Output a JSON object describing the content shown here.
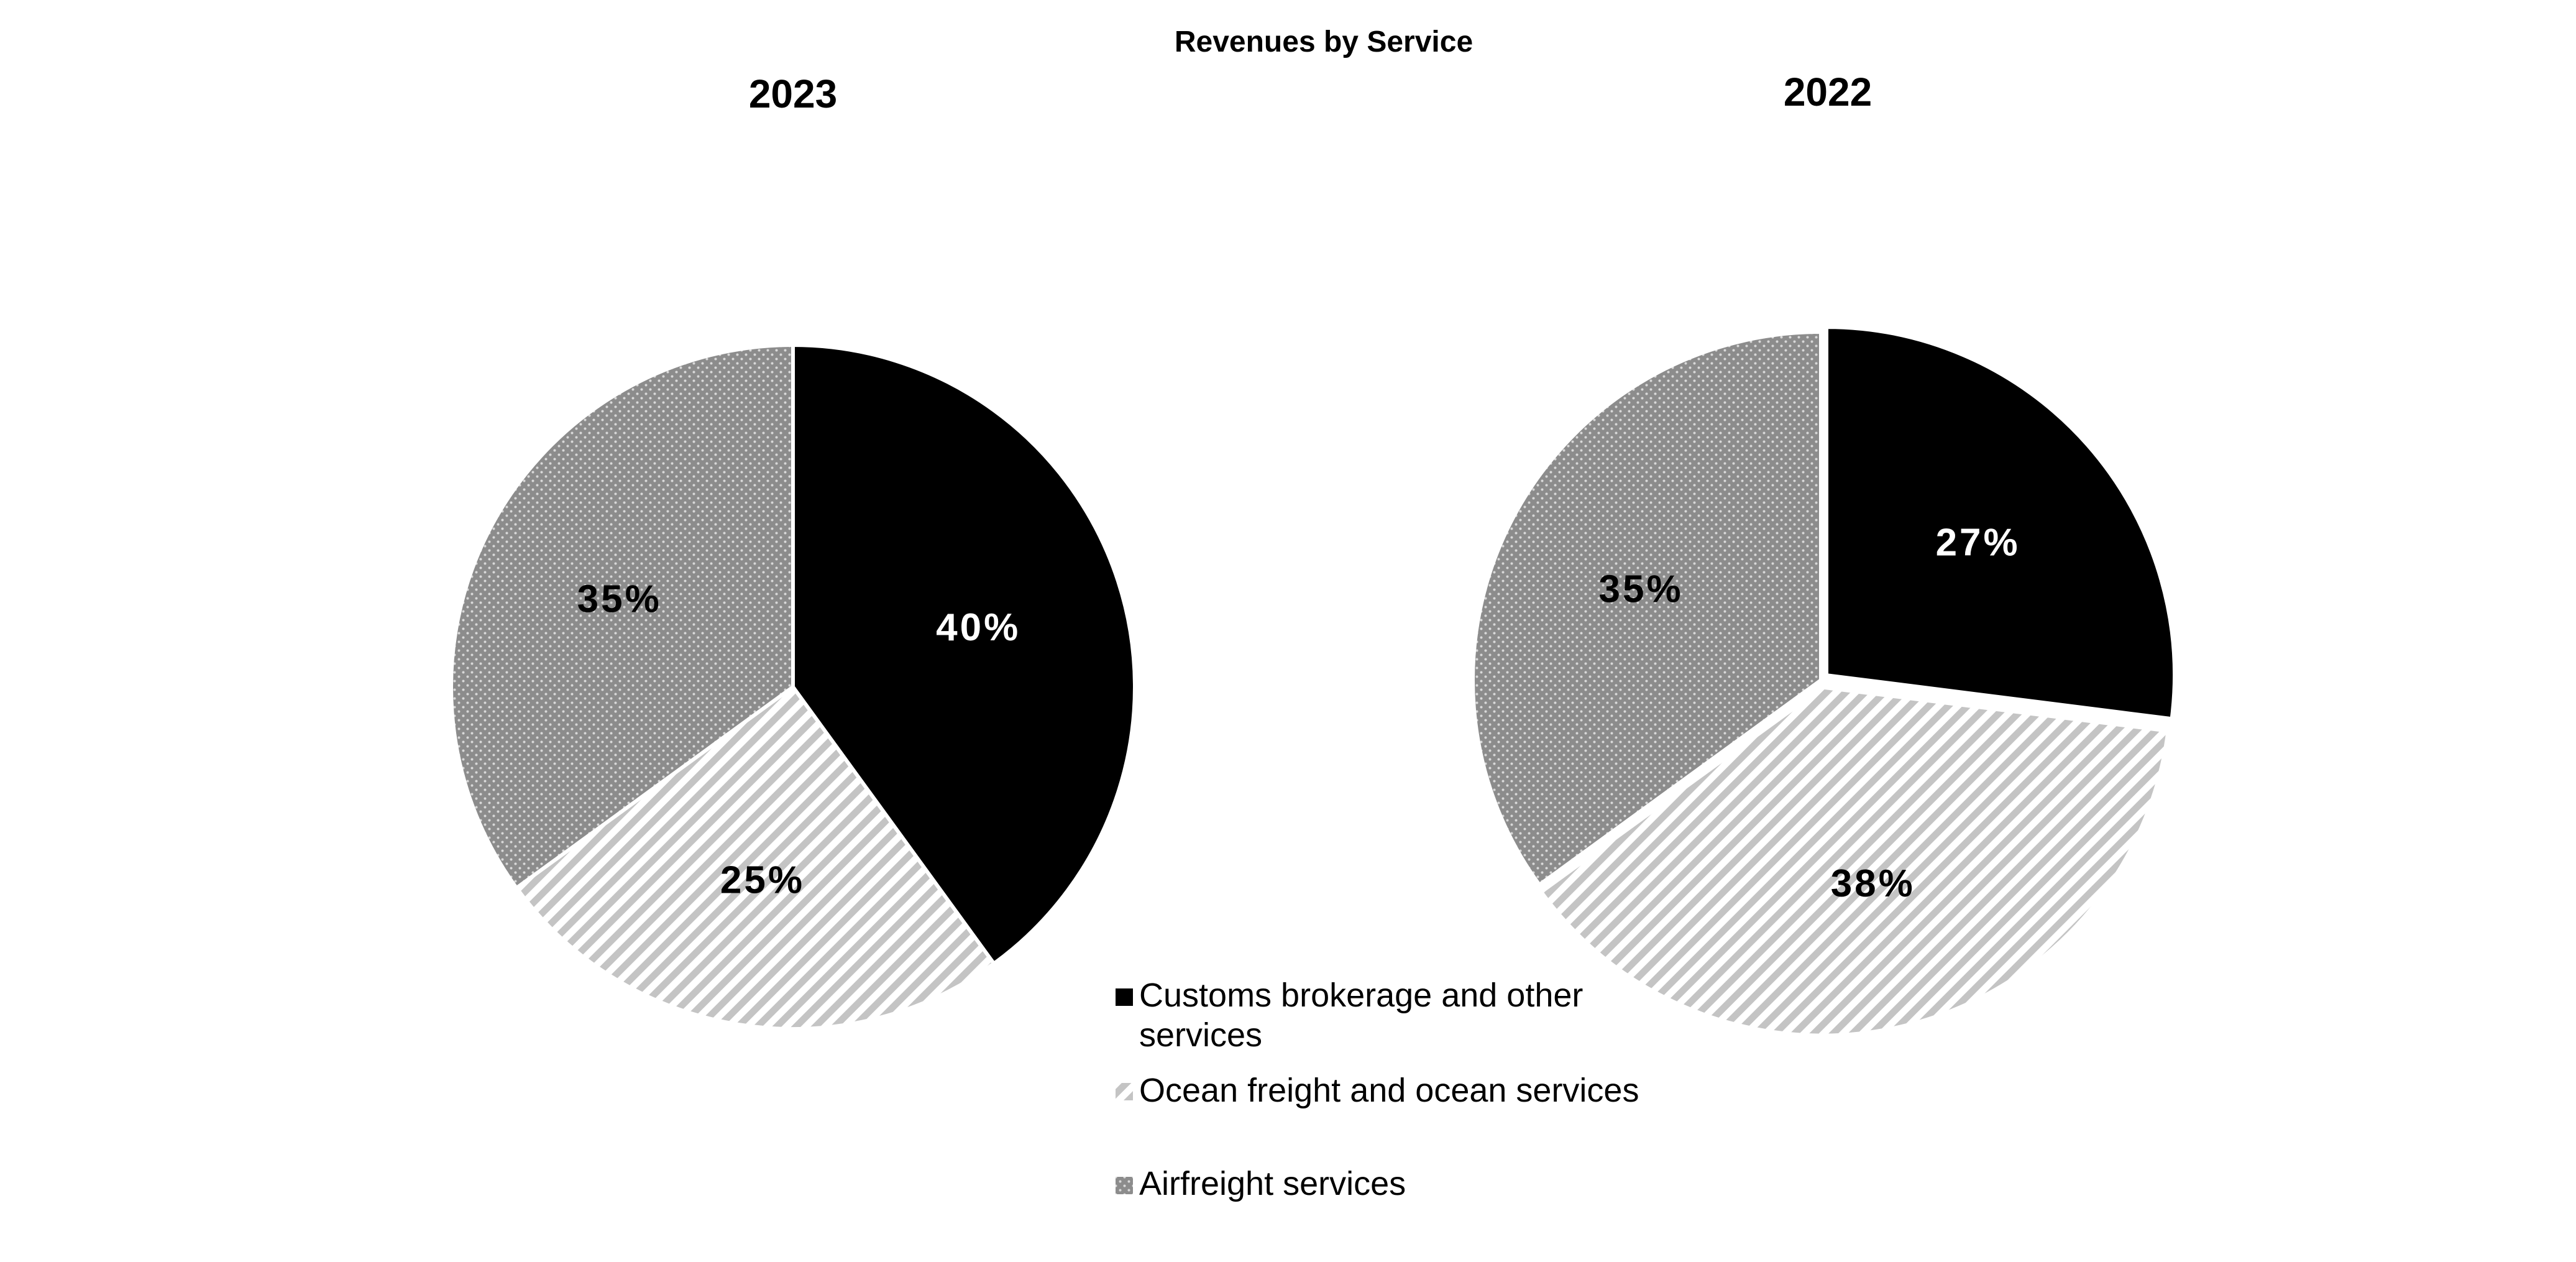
{
  "chart_data": {
    "type": "pie",
    "title": "Revenues by Service",
    "categories": [
      "Customs brokerage and other services",
      "Ocean freight and ocean services",
      "Airfreight services"
    ],
    "series": [
      {
        "name": "2023",
        "values": [
          40,
          25,
          35
        ],
        "labels": [
          "40%",
          "25%",
          "35%"
        ]
      },
      {
        "name": "2022",
        "values": [
          27,
          38,
          35
        ],
        "labels": [
          "27%",
          "38%",
          "35%"
        ]
      }
    ],
    "legend": {
      "position": "bottom-center",
      "items": [
        {
          "line1": "Customs brokerage and other",
          "line2": "services"
        },
        {
          "line1": "Ocean freight and ocean services"
        },
        {
          "line1": "Airfreight services"
        }
      ]
    },
    "colors": {
      "customs": "#000000",
      "ocean": "#c4c4c4",
      "air": "#8c8c8c",
      "label_dark": "#000000",
      "label_light": "#ffffff"
    }
  }
}
